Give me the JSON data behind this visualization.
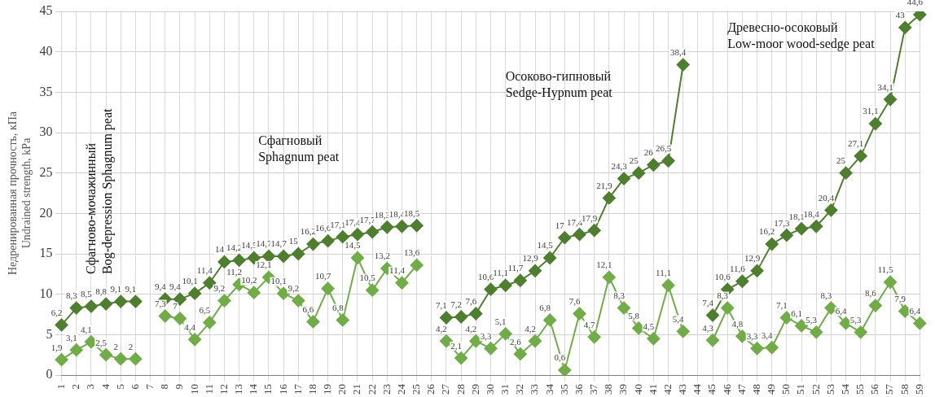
{
  "chart_data": {
    "type": "line",
    "ylabel": "Недренированная прочность, кПа\nUndrained strength, kPa",
    "categories": [
      "1",
      "2",
      "3",
      "4",
      "5",
      "6",
      "7",
      "8",
      "9",
      "10",
      "11",
      "12",
      "13",
      "14",
      "15",
      "16",
      "17",
      "18",
      "19",
      "20",
      "21",
      "22",
      "23",
      "24",
      "25",
      "26",
      "27",
      "28",
      "29",
      "30",
      "31",
      "32",
      "33",
      "34",
      "35",
      "36",
      "37",
      "38",
      "39",
      "40",
      "41",
      "42",
      "43",
      "44",
      "45",
      "46",
      "47",
      "48",
      "49",
      "50",
      "51",
      "52",
      "53",
      "54",
      "55",
      "56",
      "57",
      "58",
      "59"
    ],
    "series": [
      {
        "color": "#4e7f2e",
        "values": [
          6.2,
          8.3,
          8.5,
          8.8,
          9.1,
          9.1,
          null,
          9.4,
          9.4,
          10.1,
          11.4,
          14,
          14.2,
          14.5,
          14.7,
          14.7,
          15,
          16.2,
          16.6,
          17.1,
          17.4,
          17.7,
          18.3,
          18.4,
          18.5,
          null,
          7.1,
          7.2,
          7.6,
          10.6,
          11.1,
          11.7,
          12.9,
          14.5,
          17,
          17.4,
          17.9,
          21.9,
          24.3,
          25,
          26,
          26.5,
          38.4,
          null,
          7.4,
          10.6,
          11.6,
          12.9,
          16.2,
          17.3,
          18.1,
          18.4,
          20.4,
          25,
          27.1,
          31.1,
          34.1,
          43,
          44.6
        ],
        "value_labels": [
          "6,2",
          "8,3",
          "8,5",
          "8,8",
          "9,1",
          "9,1",
          null,
          "9,4",
          "9,4",
          "10,1",
          "11,4",
          "14",
          "14,2",
          "14,5",
          "14,7",
          "14,7",
          "15",
          "16,2",
          "16,6",
          "17,1",
          "17,4",
          "17,7",
          "18,3",
          "18,4",
          "18,5",
          null,
          "7,1",
          "7,2",
          "7,6",
          "10,6",
          "11,1",
          "11,7",
          "12,9",
          "14,5",
          "17",
          "17,4",
          "17,9",
          "21,9",
          "24,3",
          "25",
          "26",
          "26,5",
          "38,4",
          null,
          "7,4",
          "10,6",
          "11,6",
          "12,9",
          "16,2",
          "17,3",
          "18,1",
          "18,4",
          "20,4",
          "25",
          "27,1",
          "31,1",
          "34,1",
          "43",
          "44,6"
        ]
      },
      {
        "color": "#70ad47",
        "values": [
          1.9,
          3.1,
          4.1,
          2.5,
          2,
          2,
          null,
          7.3,
          7,
          4.4,
          6.5,
          9.2,
          11.2,
          10.2,
          12.1,
          10.1,
          9.2,
          6.6,
          10.7,
          6.8,
          14.5,
          10.5,
          13.2,
          11.4,
          13.6,
          null,
          4.2,
          2.1,
          4.2,
          3.3,
          5.1,
          2.6,
          4.2,
          6.8,
          0.6,
          7.6,
          4.7,
          12.1,
          8.3,
          5.8,
          4.5,
          11.1,
          5.4,
          null,
          4.3,
          8.3,
          4.8,
          3.3,
          3.4,
          7.1,
          6.1,
          5.3,
          8.3,
          6.4,
          5.3,
          8.6,
          11.5,
          7.9,
          6.4
        ],
        "value_labels": [
          "1,9",
          "3,1",
          "4,1",
          "2,5",
          "2",
          "2",
          null,
          "7,3",
          "7",
          "4,4",
          "6,5",
          "9,2",
          "11,2",
          "10,2",
          "12,1",
          "10,1",
          "9,2",
          "6,6",
          "10,7",
          "6,8",
          "14,5",
          "10,5",
          "13,2",
          "11,4",
          "13,6",
          null,
          "4,2",
          "2,1",
          "4,2",
          "3,3",
          "5,1",
          "2,6",
          "4,2",
          "6,8",
          "0,6",
          "7,6",
          "4,7",
          "12,1",
          "8,3",
          "5,8",
          "4,5",
          "11,1",
          "5,4",
          null,
          "4,3",
          "8,3",
          "4,8",
          "3,3",
          "3,4",
          "7,1",
          "6,1",
          "5,3",
          "8,3",
          "6,4",
          "5,3",
          "8,6",
          "11,5",
          "7,9",
          "6,4"
        ]
      }
    ],
    "ylim": [
      0,
      45
    ],
    "yticks": [
      0,
      5,
      10,
      15,
      20,
      25,
      30,
      35,
      40,
      45
    ],
    "grid": true,
    "legend": false,
    "marker": "diamond",
    "line_style": "solid",
    "annotations": [
      "Сфагново-мочажинный\nBog-depression Sphagnum peat",
      "Сфагновый\nSphagnum peat",
      "Осоково-гипновый\nSedge-Hypnum peat",
      "Древесно-осоковый\nLow-moor wood-sedge peat"
    ]
  }
}
